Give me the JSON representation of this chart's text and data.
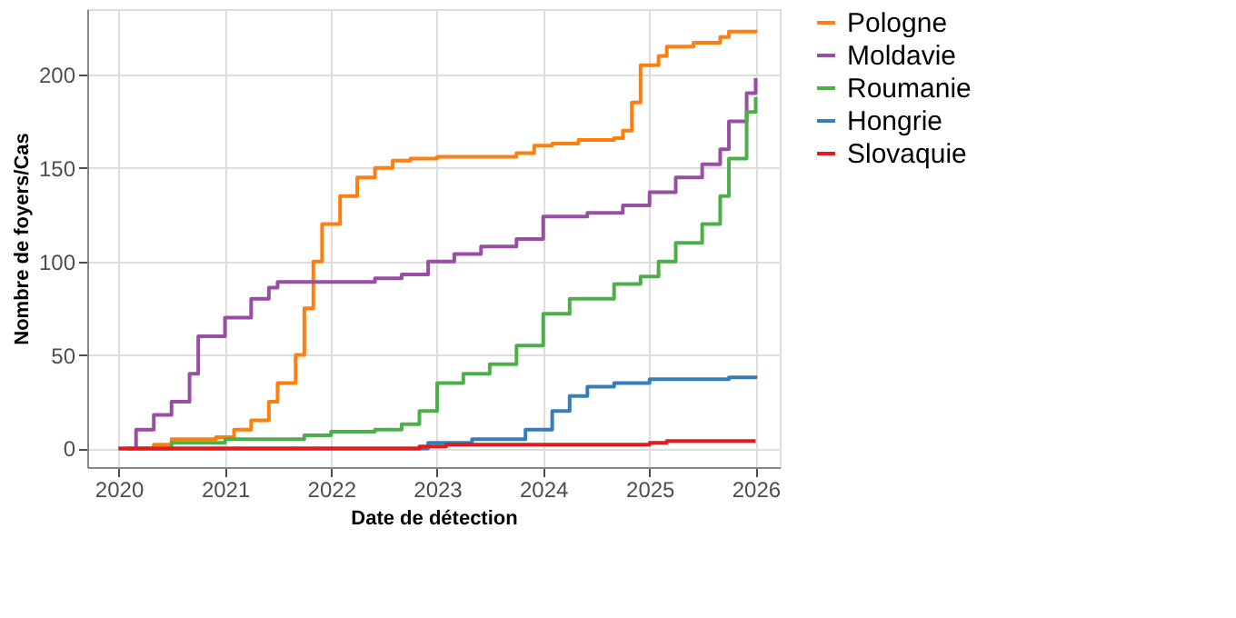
{
  "chart_data": {
    "type": "step",
    "xlabel": "Date de détection",
    "ylabel": "Nombre de foyers/Cas",
    "xlim": [
      "2019-09-15",
      "2026-03-25"
    ],
    "xticks": [
      "2020",
      "2021",
      "2022",
      "2023",
      "2024",
      "2025",
      "2026"
    ],
    "ylim": [
      -10,
      235
    ],
    "yticks": [
      0,
      50,
      100,
      150,
      200
    ],
    "grid": true,
    "legend": "right",
    "series": [
      {
        "name": "Pologne",
        "color": "#ff7f0e",
        "x": [
          "2020-03",
          "2020-05",
          "2020-07",
          "2020-12",
          "2021-02",
          "2021-04",
          "2021-06",
          "2021-07",
          "2021-09",
          "2021-10",
          "2021-11",
          "2021-12",
          "2022-02",
          "2022-04",
          "2022-06",
          "2022-08",
          "2022-10",
          "2023-01",
          "2023-09",
          "2023-10",
          "2023-12",
          "2024-02",
          "2024-05",
          "2024-09",
          "2024-10",
          "2024-11",
          "2024-12",
          "2025-02",
          "2025-03",
          "2025-06",
          "2025-09",
          "2025-10",
          "2026-01"
        ],
        "values": [
          0,
          2,
          5,
          6,
          10,
          15,
          25,
          35,
          50,
          75,
          100,
          120,
          135,
          145,
          150,
          154,
          155,
          156,
          156,
          158,
          162,
          163,
          165,
          166,
          170,
          185,
          205,
          210,
          215,
          217,
          220,
          223,
          224
        ]
      },
      {
        "name": "Moldavie",
        "color": "#984ea3",
        "x": [
          "2020-02",
          "2020-03",
          "2020-05",
          "2020-07",
          "2020-09",
          "2020-10",
          "2021-01",
          "2021-04",
          "2021-06",
          "2021-07",
          "2022-02",
          "2022-06",
          "2022-09",
          "2022-12",
          "2023-03",
          "2023-06",
          "2023-10",
          "2024-01",
          "2024-06",
          "2024-10",
          "2025-01",
          "2025-04",
          "2025-07",
          "2025-09",
          "2025-10",
          "2025-12",
          "2026-01"
        ],
        "values": [
          0,
          10,
          18,
          25,
          40,
          60,
          70,
          80,
          86,
          89,
          89,
          91,
          93,
          100,
          104,
          108,
          112,
          124,
          126,
          130,
          137,
          145,
          152,
          160,
          175,
          190,
          198
        ]
      },
      {
        "name": "Roumanie",
        "color": "#4daf4a",
        "x": [
          "2020-05",
          "2020-07",
          "2021-01",
          "2021-10",
          "2022-01",
          "2022-06",
          "2022-09",
          "2022-11",
          "2023-01",
          "2023-04",
          "2023-07",
          "2023-10",
          "2024-01",
          "2024-04",
          "2024-09",
          "2024-12",
          "2025-02",
          "2025-04",
          "2025-07",
          "2025-09",
          "2025-10",
          "2025-12",
          "2026-01"
        ],
        "values": [
          0,
          3,
          5,
          7,
          9,
          10,
          13,
          20,
          35,
          40,
          45,
          55,
          72,
          80,
          88,
          92,
          100,
          110,
          120,
          135,
          155,
          180,
          188
        ]
      },
      {
        "name": "Hongrie",
        "color": "#377eb8",
        "x": [
          "2020-01",
          "2022-11",
          "2022-12",
          "2023-05",
          "2023-09",
          "2023-11",
          "2024-02",
          "2024-04",
          "2024-06",
          "2024-09",
          "2025-01",
          "2025-09",
          "2025-10",
          "2026-01"
        ],
        "values": [
          0,
          0,
          3,
          5,
          5,
          10,
          20,
          28,
          33,
          35,
          37,
          37,
          38,
          39
        ]
      },
      {
        "name": "Slovaquie",
        "color": "#e41a1c",
        "x": [
          "2020-01",
          "2022-11",
          "2023-02",
          "2024-11",
          "2025-01",
          "2025-03",
          "2026-01"
        ],
        "values": [
          0,
          1,
          2,
          2,
          3,
          4,
          4
        ]
      }
    ]
  }
}
